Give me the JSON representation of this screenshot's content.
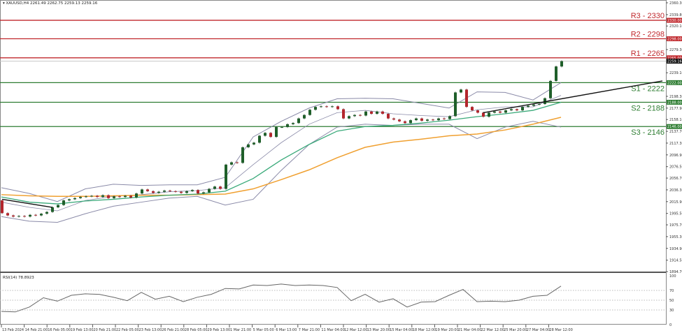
{
  "header": {
    "symbol": "XAUUSD,H4",
    "ohlc": "2261.49 2262.75 2259.13 2259.16"
  },
  "colors": {
    "resistance": "#c0282d",
    "support": "#2e7d32",
    "bull": "#1f5f2a",
    "bear": "#b3262d",
    "ma_fast": "#3aaa7a",
    "ma_slow": "#f0a030",
    "bands": "#8a8aa8",
    "trendline": "#111111"
  },
  "levels": [
    {
      "label": "R3 - 2330",
      "price": 2330,
      "tag": "2330.00",
      "type": "resistance"
    },
    {
      "label": "R2 - 2298",
      "price": 2298,
      "tag": "2298.00",
      "type": "resistance"
    },
    {
      "label": "R1 - 2265",
      "price": 2265,
      "tag": "2265.00",
      "type": "resistance"
    },
    {
      "label": "S1 - 2222",
      "price": 2222,
      "tag": "2222.00",
      "type": "support"
    },
    {
      "label": "S2 - 2188",
      "price": 2188,
      "tag": "2188.00",
      "type": "support"
    },
    {
      "label": "S3 - 2146",
      "price": 2146,
      "tag": "2146.00",
      "type": "support"
    }
  ],
  "current_price": {
    "value": 2259.16,
    "tag": "2259.16"
  },
  "rsi": {
    "label": "RSI(14) 78.8923"
  },
  "chart_data": [
    {
      "type": "candlestick",
      "title": "XAUUSD,H4",
      "ylim": [
        1894.7,
        2360.3
      ],
      "y_ticks": [
        "2360.30",
        "2339.80",
        "2320.10",
        "2279.30",
        "2239.10",
        "2198.30",
        "2177.90",
        "2158.10",
        "2137.70",
        "2117.30",
        "2096.90",
        "2076.50",
        "2056.70",
        "2036.30",
        "2015.90",
        "1995.50",
        "1975.70",
        "1955.30",
        "1934.90",
        "1914.50",
        "1894.70"
      ],
      "x_ticks": [
        "13 Feb 2024",
        "14 Feb 21:00",
        "16 Feb 05:00",
        "19 Feb 13:00",
        "20 Feb 21:00",
        "22 Feb 05:00",
        "23 Feb 13:00",
        "26 Feb 21:00",
        "28 Feb 05:00",
        "29 Feb 13:00",
        "1 Mar 21:00",
        "5 Mar 05:00",
        "6 Mar 13:00",
        "7 Mar 21:00",
        "11 Mar 04:00",
        "12 Mar 12:00",
        "13 Mar 20:00",
        "15 Mar 04:00",
        "18 Mar 12:00",
        "19 Mar 20:00",
        "21 Mar 04:00",
        "22 Mar 12:00",
        "25 Mar 20:00",
        "27 Mar 04:00",
        "28 Mar 12:00"
      ],
      "first_open": 2018,
      "closes": [
        1996,
        1992,
        1990,
        1991,
        1990,
        1993,
        1992,
        1995,
        1998,
        2006,
        2010,
        2018,
        2020,
        2022,
        2024,
        2025,
        2026,
        2024,
        2027,
        2022,
        2025,
        2024,
        2026,
        2023,
        2030,
        2037,
        2034,
        2031,
        2033,
        2035,
        2034,
        2033,
        2031,
        2034,
        2036,
        2030,
        2032,
        2038,
        2042,
        2038,
        2080,
        2084,
        2083,
        2110,
        2115,
        2118,
        2130,
        2135,
        2128,
        2145,
        2145,
        2150,
        2152,
        2160,
        2166,
        2175,
        2180,
        2181,
        2180,
        2181,
        2176,
        2160,
        2164,
        2166,
        2165,
        2172,
        2168,
        2172,
        2168,
        2160,
        2158,
        2155,
        2152,
        2157,
        2160,
        2156,
        2158,
        2157,
        2160,
        2159,
        2164,
        2205,
        2210,
        2180,
        2174,
        2170,
        2163,
        2170,
        2172,
        2170,
        2174,
        2176,
        2174,
        2180,
        2182,
        2184,
        2185,
        2195,
        2225,
        2250,
        2259.16
      ],
      "overlays": {
        "ma_fast": [
          2024,
          2015,
          2012,
          2017,
          2020,
          2024,
          2027,
          2029,
          2034,
          2056,
          2088,
          2115,
          2138,
          2146,
          2148,
          2152,
          2157,
          2163,
          2168,
          2174,
          2188
        ],
        "ma_slow": [
          2028,
          2026,
          2025,
          2025,
          2026,
          2027,
          2027,
          2028,
          2029,
          2038,
          2054,
          2071,
          2092,
          2110,
          2119,
          2124,
          2130,
          2133,
          2140,
          2150,
          2162
        ],
        "bb_upper": [
          2040,
          2030,
          2016,
          2038,
          2046,
          2044,
          2045,
          2045,
          2058,
          2128,
          2155,
          2178,
          2194,
          2195,
          2194,
          2186,
          2178,
          2206,
          2205,
          2192,
          2222
        ],
        "bb_mid": [
          2015,
          2006,
          2000,
          2018,
          2025,
          2028,
          2033,
          2035,
          2040,
          2080,
          2118,
          2150,
          2170,
          2174,
          2168,
          2165,
          2163,
          2175,
          2180,
          2180,
          2200
        ],
        "bb_lower": [
          1990,
          1982,
          1980,
          1995,
          2008,
          2015,
          2022,
          2025,
          2010,
          2020,
          2070,
          2115,
          2145,
          2150,
          2148,
          2150,
          2150,
          2125,
          2145,
          2155,
          2145
        ]
      },
      "trendlines": [
        {
          "from_price": 2020,
          "to_price": 2006,
          "from_bar": 0,
          "to_bar": 9
        },
        {
          "from_price": 2170,
          "to_price": 2225,
          "from_bar": 86,
          "to_bar": 118
        }
      ]
    },
    {
      "type": "line",
      "title": "RSI(14) 78.8923",
      "ylim": [
        0,
        100
      ],
      "y_ticks": [
        "100",
        "70",
        "50",
        "30",
        "0"
      ],
      "levels": [
        70,
        50,
        30
      ],
      "values": [
        27,
        26,
        36,
        55,
        48,
        60,
        63,
        62,
        56,
        49,
        66,
        52,
        58,
        47,
        56,
        62,
        74,
        73,
        81,
        80,
        83,
        80,
        81,
        80,
        76,
        49,
        62,
        46,
        53,
        36,
        46,
        47,
        60,
        72,
        47,
        48,
        47,
        50,
        58,
        60,
        78.89
      ]
    }
  ]
}
